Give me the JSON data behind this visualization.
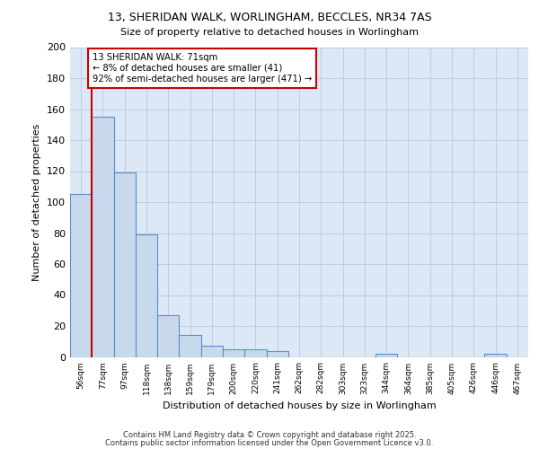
{
  "title1": "13, SHERIDAN WALK, WORLINGHAM, BECCLES, NR34 7AS",
  "title2": "Size of property relative to detached houses in Worlingham",
  "xlabel": "Distribution of detached houses by size in Worlingham",
  "ylabel": "Number of detached properties",
  "bar_labels": [
    "56sqm",
    "77sqm",
    "97sqm",
    "118sqm",
    "138sqm",
    "159sqm",
    "179sqm",
    "200sqm",
    "220sqm",
    "241sqm",
    "262sqm",
    "282sqm",
    "303sqm",
    "323sqm",
    "344sqm",
    "364sqm",
    "385sqm",
    "405sqm",
    "426sqm",
    "446sqm",
    "467sqm"
  ],
  "bar_values": [
    105,
    155,
    119,
    79,
    27,
    14,
    7,
    5,
    5,
    4,
    0,
    0,
    0,
    0,
    2,
    0,
    0,
    0,
    0,
    2,
    0
  ],
  "bar_color": "#c8d9ee",
  "bar_edge_color": "#5b8dc8",
  "subject_line_color": "#cc0000",
  "annotation_text": "13 SHERIDAN WALK: 71sqm\n← 8% of detached houses are smaller (41)\n92% of semi-detached houses are larger (471) →",
  "annotation_box_color": "#cc0000",
  "ylim": [
    0,
    200
  ],
  "yticks": [
    0,
    20,
    40,
    60,
    80,
    100,
    120,
    140,
    160,
    180,
    200
  ],
  "footer1": "Contains HM Land Registry data © Crown copyright and database right 2025.",
  "footer2": "Contains public sector information licensed under the Open Government Licence v3.0.",
  "bg_color": "#ffffff",
  "plot_bg_color": "#dce8f5",
  "grid_color": "#b8cfe0"
}
